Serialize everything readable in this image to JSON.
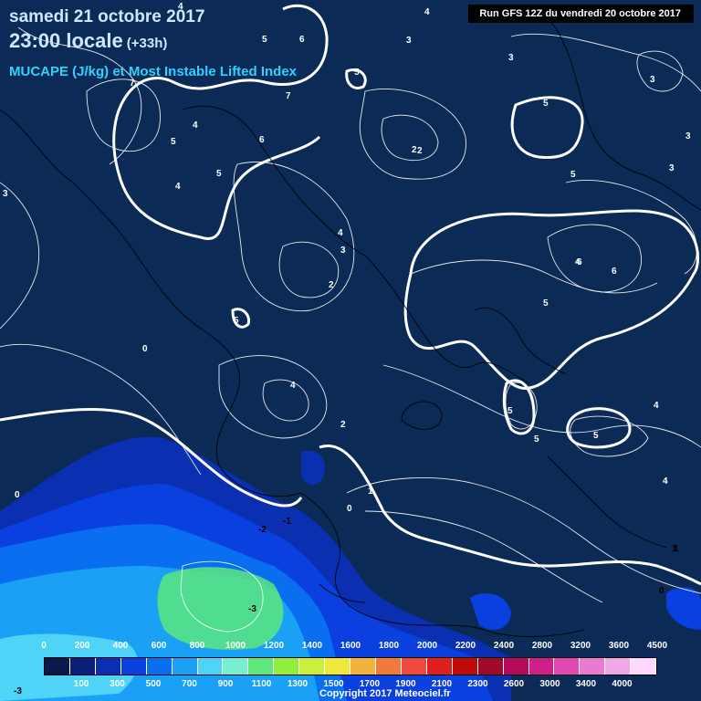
{
  "title": {
    "date": "samedi 21 octobre 2017",
    "time": "23:00 locale",
    "offset": "(+33h)",
    "product": "MUCAPE (J/kg) et Most Instable Lifted Index"
  },
  "run_info": "Run GFS 12Z du vendredi 20 octobre 2017",
  "copyright": "Copyright 2017 Meteociel.fr",
  "legend": {
    "top_labels": [
      "0",
      "200",
      "400",
      "600",
      "800",
      "1000",
      "1200",
      "1400",
      "1600",
      "1800",
      "2000",
      "2200",
      "2400",
      "2800",
      "3200",
      "3600",
      "4500"
    ],
    "bottom_labels": [
      "100",
      "300",
      "500",
      "700",
      "900",
      "1100",
      "1300",
      "1500",
      "1700",
      "1900",
      "2100",
      "2300",
      "2600",
      "3000",
      "3400",
      "4000"
    ],
    "colors": [
      "#0a1a4a",
      "#0a1f7a",
      "#0a2fb0",
      "#0a3fe0",
      "#0a6ef0",
      "#1aa0f5",
      "#4fd3f7",
      "#76f0d0",
      "#5ce87c",
      "#8ef03c",
      "#c8f03c",
      "#f0e83c",
      "#f0b43c",
      "#f07a3c",
      "#f0483c",
      "#e01e1e",
      "#c00a0a",
      "#a00a2a",
      "#b80a5a",
      "#d01e8a",
      "#e04ab0",
      "#e87ad0",
      "#f0a8e8",
      "#ffd8ff"
    ]
  },
  "contour_labels": [
    {
      "t": "4"
    },
    {
      "t": "4"
    },
    {
      "t": "6"
    },
    {
      "t": "5"
    },
    {
      "t": "3"
    },
    {
      "t": "3"
    },
    {
      "t": "3"
    },
    {
      "t": "5"
    },
    {
      "t": "7"
    },
    {
      "t": "7"
    },
    {
      "t": "5"
    },
    {
      "t": "4"
    },
    {
      "t": "5"
    },
    {
      "t": "6"
    },
    {
      "t": "5"
    },
    {
      "t": "4"
    },
    {
      "t": "3"
    },
    {
      "t": "2"
    },
    {
      "t": "5"
    },
    {
      "t": "4"
    },
    {
      "t": "3"
    },
    {
      "t": "2"
    },
    {
      "t": "4"
    },
    {
      "t": "3"
    },
    {
      "t": "6"
    },
    {
      "t": "6"
    },
    {
      "t": "5"
    },
    {
      "t": "5"
    },
    {
      "t": "0"
    },
    {
      "t": "4"
    },
    {
      "t": "2"
    },
    {
      "t": "5"
    },
    {
      "t": "5"
    },
    {
      "t": "5"
    },
    {
      "t": "4"
    },
    {
      "t": "4"
    },
    {
      "t": "0"
    },
    {
      "t": "1"
    },
    {
      "t": "0"
    },
    {
      "t": "-1"
    },
    {
      "t": "-2"
    },
    {
      "t": "-3"
    },
    {
      "t": "1"
    },
    {
      "t": "0"
    },
    {
      "t": "-3"
    },
    {
      "t": "3"
    },
    {
      "t": "2"
    },
    {
      "t": "1"
    }
  ]
}
